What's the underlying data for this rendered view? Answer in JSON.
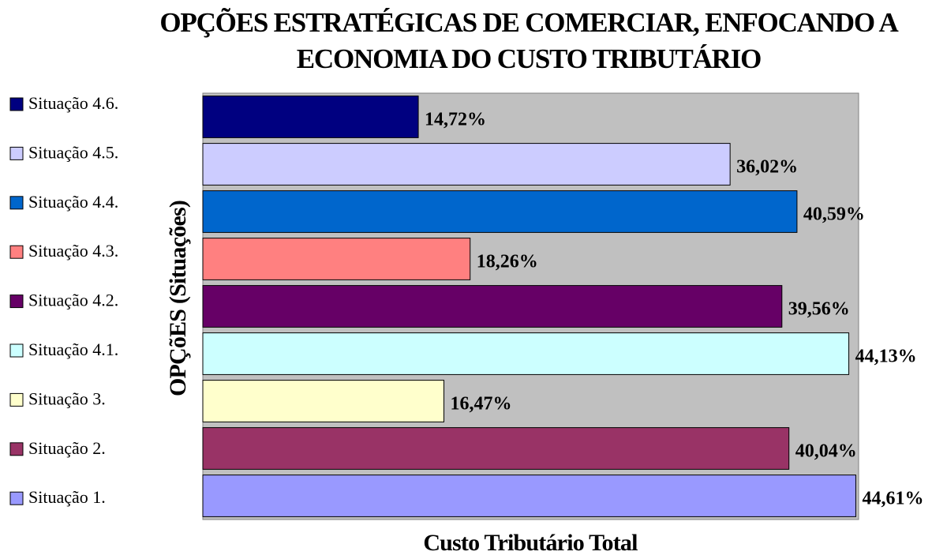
{
  "chart_data": {
    "type": "hbar",
    "title": [
      "OPÇÕES ESTRATÉGICAS DE COMERCIAR, ENFOCANDO A",
      "ECONOMIA DO CUSTO TRIBUTÁRIO"
    ],
    "ylabel": "OPÇõES (Situações)",
    "xlabel": "Custo Tributário Total",
    "categories": [
      "Situação 4.6.",
      "Situação 4.5.",
      "Situação 4.4.",
      "Situação 4.3.",
      "Situação 4.2.",
      "Situação 4.1.",
      "Situação 3.",
      "Situação 2.",
      "Situação 1."
    ],
    "values": [
      14.72,
      36.02,
      40.59,
      18.26,
      39.56,
      44.13,
      16.47,
      40.04,
      44.61
    ],
    "value_labels": [
      "14,72%",
      "36,02%",
      "40,59%",
      "18,26%",
      "39,56%",
      "44,13%",
      "16,47%",
      "40,04%",
      "44,61%"
    ],
    "colors": [
      "#000080",
      "#ccccff",
      "#0066cc",
      "#ff8080",
      "#660066",
      "#ccffff",
      "#ffffcc",
      "#993366",
      "#9999ff"
    ],
    "xlim": [
      0,
      44.8
    ],
    "legend": "left"
  }
}
